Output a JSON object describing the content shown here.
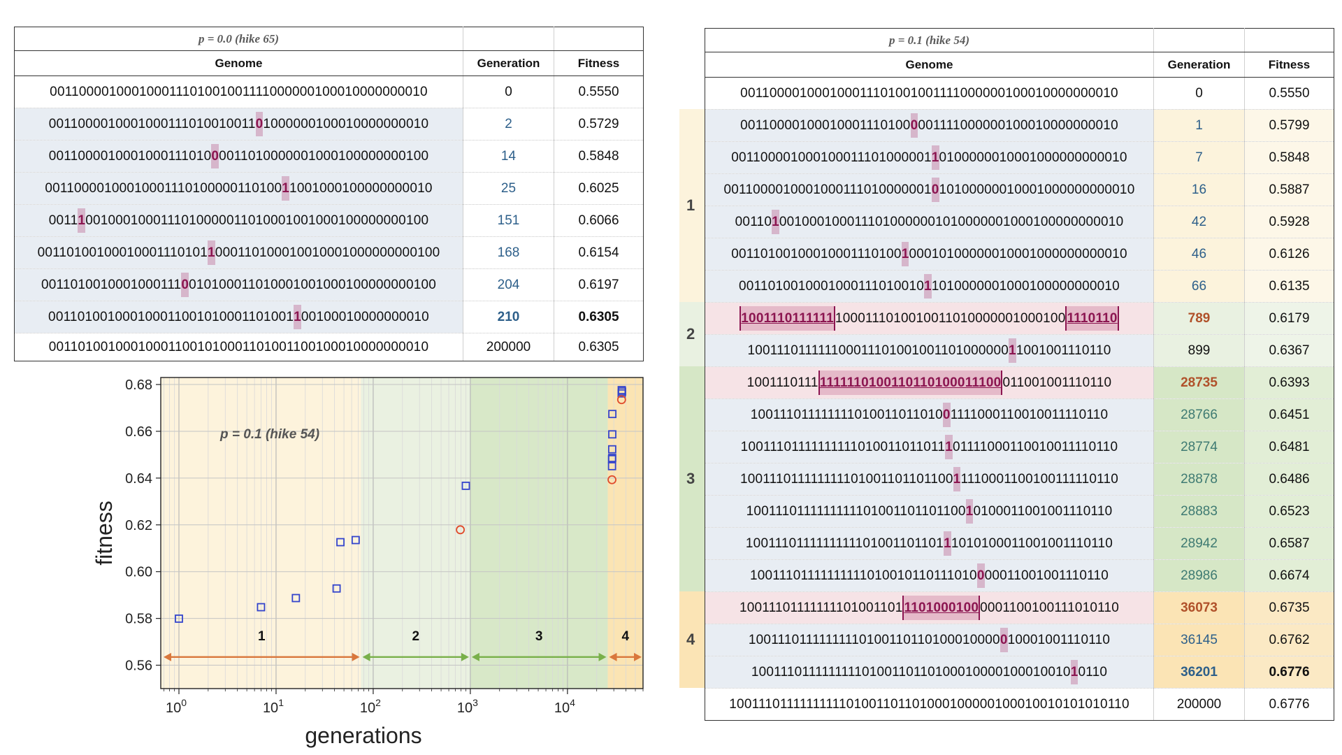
{
  "left_table": {
    "title": "p = 0.0 (hike 65)",
    "headers": {
      "genome": "Genome",
      "generation": "Generation",
      "fitness": "Fitness"
    },
    "rows": [
      {
        "pre": "001100001000100011101001001111000000100010000000010",
        "hl": "",
        "post": "",
        "gen": "0",
        "fit": "0.5550",
        "gen_style": "plain",
        "fit_style": "plain"
      },
      {
        "pre": "0011000010001000111010010011",
        "hl": "0",
        "post": "1000000100010000000010",
        "gen": "2",
        "fit": "0.5729",
        "gen_style": "blue",
        "fit_style": "plain"
      },
      {
        "pre": "0011000010001000111010",
        "hl": "0",
        "post": "0011010000001000100000000100",
        "gen": "14",
        "fit": "0.5848",
        "gen_style": "blue",
        "fit_style": "plain"
      },
      {
        "pre": "00110000100010001110100000110100",
        "hl": "1",
        "post": "1001000100000000010",
        "gen": "25",
        "fit": "0.6025",
        "gen_style": "blue",
        "fit_style": "plain"
      },
      {
        "pre": "0011",
        "hl": "1",
        "post": "0010001000111010000011010001001000100000000100",
        "gen": "151",
        "fit": "0.6066",
        "gen_style": "blue",
        "fit_style": "plain"
      },
      {
        "pre": "00110100100010001110101",
        "hl": "1",
        "post": "000110100010010001000000000100",
        "gen": "168",
        "fit": "0.6154",
        "gen_style": "blue",
        "fit_style": "plain"
      },
      {
        "pre": "0011010010001000111",
        "hl": "0",
        "post": "010100011010001001000100000000100",
        "gen": "204",
        "fit": "0.6197",
        "gen_style": "blue",
        "fit_style": "plain"
      },
      {
        "pre": "001101001000100011001010001101001",
        "hl": "1",
        "post": "00100010000000010",
        "gen": "210",
        "fit": "0.6305",
        "gen_style": "bold-blue",
        "fit_style": "bold"
      },
      {
        "pre": "001101001000100011001010001101001100100010000000010",
        "hl": "",
        "post": "",
        "gen": "200000",
        "fit": "0.6305",
        "gen_style": "plain",
        "fit_style": "plain"
      }
    ]
  },
  "right_table": {
    "title": "p = 0.1 (hike 54)",
    "headers": {
      "genome": "Genome",
      "generation": "Generation",
      "fitness": "Fitness"
    },
    "phase_labels": [
      "1",
      "2",
      "3",
      "4"
    ],
    "rows": [
      {
        "pre": "001100001000100011101001001111000000100010000000010",
        "mark": "",
        "post": "",
        "mark2": "",
        "gen": "0",
        "fit": "0.5550"
      },
      {
        "pre": "00110000100010001110100",
        "mark": "0",
        "post": "001111000000100010000000010",
        "mark2": "",
        "gen": "1",
        "fit": "0.5799"
      },
      {
        "pre": "001100001000100011101000001",
        "mark": "1",
        "post": "0100000010001000000000010",
        "mark2": "",
        "gen": "7",
        "fit": "0.5848"
      },
      {
        "pre": "0011000010001000111010000001",
        "mark": "0",
        "post": "10100000010001000000000010",
        "mark2": "",
        "gen": "16",
        "fit": "0.5887"
      },
      {
        "pre": "00110",
        "mark": "1",
        "post": "0010001000111010000001010000001000100000000010",
        "mark2": "",
        "gen": "42",
        "fit": "0.5928"
      },
      {
        "pre": "00110100100010001110100",
        "mark": "1",
        "post": "00010100000010001000000000010",
        "mark2": "",
        "gen": "46",
        "fit": "0.6126"
      },
      {
        "pre": "0011010010001000111010010",
        "mark": "1",
        "post": "1010000001000100000000010",
        "mark2": "",
        "gen": "66",
        "fit": "0.6135"
      },
      {
        "pre": "",
        "mark": "1001110111111",
        "post": "1000111010010011010000001000100",
        "mark2": "1110110",
        "gen": "789",
        "fit": "0.6179"
      },
      {
        "pre": "100111011111100011101001001101000000",
        "mark": "1",
        "post": "1001001110110",
        "mark2": "",
        "gen": "899",
        "fit": "0.6367"
      },
      {
        "pre": "1001110111",
        "mark": "1111110100110110100011100",
        "post": "011001001110110",
        "mark2": "",
        "gen": "28735",
        "fit": "0.6393"
      },
      {
        "pre": "100111011111111010011011010",
        "mark": "0",
        "post": "1111000110010011110110",
        "mark2": "",
        "gen": "28766",
        "fit": "0.6451"
      },
      {
        "pre": "10011101111111111010011011011",
        "mark": "1",
        "post": "01111000110010011110110",
        "mark2": "",
        "gen": "28774",
        "fit": "0.6481"
      },
      {
        "pre": "100111011111111101001101101100",
        "mark": "1",
        "post": "1110001100100111110110",
        "mark2": "",
        "gen": "28878",
        "fit": "0.6486"
      },
      {
        "pre": "1001110111111111101001101101100",
        "mark": "1",
        "post": "0100011001001110110",
        "mark2": "",
        "gen": "28883",
        "fit": "0.6523"
      },
      {
        "pre": "1001110111111111101001101101",
        "mark": "1",
        "post": "1010100011001001110110",
        "mark2": "",
        "gen": "28942",
        "fit": "0.6587"
      },
      {
        "pre": "10011101111111111010010110111010",
        "mark": "0",
        "post": "00011001001110110",
        "mark2": "",
        "gen": "28986",
        "fit": "0.6674"
      },
      {
        "pre": "10011101111111101001101",
        "mark": "1101000100",
        "post": "0001100100111010110",
        "mark2": "",
        "gen": "36073",
        "fit": "0.6735"
      },
      {
        "pre": "10011101111111110100110110100010000",
        "mark": "0",
        "post": "10001001110110",
        "mark2": "",
        "gen": "36145",
        "fit": "0.6762"
      },
      {
        "pre": "10011101111111110100110110100010000100010010",
        "mark": "1",
        "post": "0110",
        "mark2": "",
        "gen": "36201",
        "fit": "0.6776"
      },
      {
        "pre": "1001110111111111101001101101000100000100010010101010110",
        "mark": "",
        "post": "",
        "mark2": "",
        "gen": "200000",
        "fit": "0.6776"
      }
    ]
  },
  "chart_data": {
    "type": "scatter",
    "title": "p = 0.1 (hike 54)",
    "xlabel": "generations",
    "ylabel": "fitness",
    "xscale": "log",
    "xlim": [
      0.65,
      60000
    ],
    "ylim": [
      0.55,
      0.683
    ],
    "yticks": [
      "0.56",
      "0.58",
      "0.60",
      "0.62",
      "0.64",
      "0.66",
      "0.68"
    ],
    "xticks": [
      "10",
      "10",
      "10",
      "10",
      "10"
    ],
    "xtick_exponents": [
      "0",
      "1",
      "2",
      "3",
      "4"
    ],
    "phases": [
      {
        "label": "1",
        "from": 0.65,
        "to": 75,
        "color": "#fdf3dc"
      },
      {
        "label": "2",
        "from": 75,
        "to": 1000,
        "color": "#eaf1e1"
      },
      {
        "label": "3",
        "from": 1000,
        "to": 26000,
        "color": "#d8e8c8"
      },
      {
        "label": "4",
        "from": 26000,
        "to": 60000,
        "color": "#fbe4b3"
      }
    ],
    "series": [
      {
        "name": "square",
        "marker": "square",
        "color": "#3344cc",
        "points": [
          [
            1,
            0.5799
          ],
          [
            7,
            0.5848
          ],
          [
            16,
            0.5887
          ],
          [
            42,
            0.5928
          ],
          [
            46,
            0.6126
          ],
          [
            66,
            0.6135
          ],
          [
            899,
            0.6367
          ],
          [
            28766,
            0.6451
          ],
          [
            28774,
            0.6481
          ],
          [
            28878,
            0.6486
          ],
          [
            28883,
            0.6523
          ],
          [
            28942,
            0.6587
          ],
          [
            28986,
            0.6674
          ],
          [
            36145,
            0.6762
          ],
          [
            36201,
            0.6776
          ],
          [
            36500,
            0.677
          ]
        ]
      },
      {
        "name": "circle",
        "marker": "circle",
        "color": "#e04a2a",
        "points": [
          [
            789,
            0.6179
          ],
          [
            28735,
            0.6393
          ],
          [
            36073,
            0.6735
          ]
        ]
      }
    ]
  }
}
